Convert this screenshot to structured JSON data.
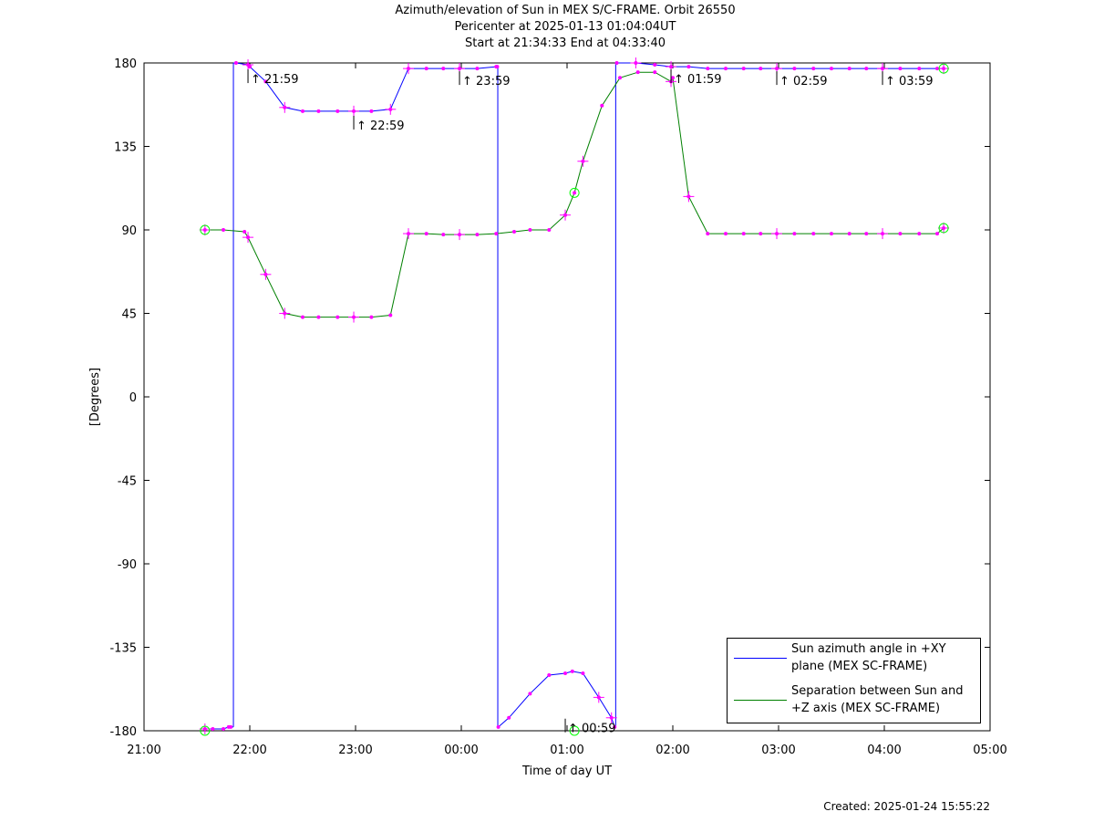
{
  "header": {
    "title_line1": "Azimuth/elevation of Sun in MEX S/C-FRAME.  Orbit 26550",
    "title_line2": "Pericenter at 2025-01-13 01:04:04UT",
    "title_line3": "Start at 21:34:33 End at 04:33:40"
  },
  "footer": {
    "created": "Created: 2025-01-24 15:55:22"
  },
  "legend": {
    "series_azimuth": "Sun azimuth angle in +XY\nplane (MEX SC-FRAME)",
    "series_separation": "Separation between Sun and\n+Z axis (MEX SC-FRAME)"
  },
  "colors": {
    "azimuth": "#0000ff",
    "separation": "#008000",
    "markers": "#ff00ff",
    "endpoint_circles": "#00ff00",
    "axes": "#000000"
  },
  "chart_data": {
    "type": "line",
    "xlabel": "Time of day UT",
    "ylabel": "[Degrees]",
    "xlim_hours": [
      21,
      29
    ],
    "ylim": [
      -180,
      180
    ],
    "x_ticks": [
      {
        "h": 21,
        "label": "21:00"
      },
      {
        "h": 22,
        "label": "22:00"
      },
      {
        "h": 23,
        "label": "23:00"
      },
      {
        "h": 24,
        "label": "00:00"
      },
      {
        "h": 25,
        "label": "01:00"
      },
      {
        "h": 26,
        "label": "02:00"
      },
      {
        "h": 27,
        "label": "03:00"
      },
      {
        "h": 28,
        "label": "04:00"
      },
      {
        "h": 29,
        "label": "05:00"
      }
    ],
    "y_ticks": [
      180,
      135,
      90,
      45,
      0,
      -45,
      -90,
      -135,
      -180
    ],
    "grid": false,
    "legend_position": "bottom-right",
    "series": [
      {
        "name": "Sun azimuth angle in +XY plane (MEX SC-FRAME)",
        "key": "azimuth",
        "points": [
          [
            21.576,
            -179
          ],
          [
            21.65,
            -179
          ],
          [
            21.75,
            -179
          ],
          [
            21.8,
            -178
          ],
          [
            21.82,
            -178
          ],
          [
            21.87,
            180
          ],
          [
            21.983,
            179
          ],
          [
            22.0,
            178
          ],
          [
            22.15,
            170
          ],
          [
            22.33,
            156
          ],
          [
            22.5,
            154
          ],
          [
            22.65,
            154
          ],
          [
            22.83,
            154
          ],
          [
            22.983,
            154
          ],
          [
            23.15,
            154
          ],
          [
            23.33,
            155
          ],
          [
            23.5,
            177
          ],
          [
            23.67,
            177
          ],
          [
            23.83,
            177
          ],
          [
            23.983,
            177
          ],
          [
            24.15,
            177
          ],
          [
            24.33,
            178
          ],
          [
            24.34,
            178
          ],
          [
            24.35,
            -178
          ],
          [
            24.45,
            -173
          ],
          [
            24.65,
            -160
          ],
          [
            24.83,
            -150
          ],
          [
            24.983,
            -149
          ],
          [
            25.05,
            -148
          ],
          [
            25.15,
            -149
          ],
          [
            25.3,
            -162
          ],
          [
            25.42,
            -173
          ],
          [
            25.45,
            -178
          ],
          [
            25.47,
            180
          ],
          [
            25.65,
            180
          ],
          [
            25.83,
            179
          ],
          [
            25.983,
            178
          ],
          [
            26.15,
            178
          ],
          [
            26.33,
            177
          ],
          [
            26.5,
            177
          ],
          [
            26.67,
            177
          ],
          [
            26.83,
            177
          ],
          [
            26.983,
            177
          ],
          [
            27.15,
            177
          ],
          [
            27.33,
            177
          ],
          [
            27.5,
            177
          ],
          [
            27.67,
            177
          ],
          [
            27.83,
            177
          ],
          [
            27.983,
            177
          ],
          [
            28.15,
            177
          ],
          [
            28.33,
            177
          ],
          [
            28.5,
            177
          ],
          [
            28.561,
            177
          ]
        ],
        "markers": [
          [
            21.576,
            -179
          ],
          [
            21.983,
            179
          ],
          [
            22.33,
            156
          ],
          [
            22.983,
            154
          ],
          [
            23.33,
            155
          ],
          [
            23.5,
            177
          ],
          [
            23.983,
            177
          ],
          [
            25.3,
            -162
          ],
          [
            25.42,
            -173
          ],
          [
            25.65,
            180
          ],
          [
            25.983,
            178
          ],
          [
            26.983,
            177
          ],
          [
            27.983,
            177
          ],
          [
            28.561,
            177
          ]
        ]
      },
      {
        "name": "Separation between Sun and +Z axis (MEX SC-FRAME)",
        "key": "separation",
        "points": [
          [
            21.576,
            90
          ],
          [
            21.75,
            90
          ],
          [
            21.95,
            89
          ],
          [
            21.983,
            86
          ],
          [
            22.15,
            66
          ],
          [
            22.33,
            45
          ],
          [
            22.5,
            43
          ],
          [
            22.65,
            43
          ],
          [
            22.83,
            43
          ],
          [
            22.983,
            43
          ],
          [
            23.15,
            43
          ],
          [
            23.33,
            44
          ],
          [
            23.5,
            88
          ],
          [
            23.67,
            88
          ],
          [
            23.83,
            87.5
          ],
          [
            23.983,
            87.5
          ],
          [
            24.15,
            87.5
          ],
          [
            24.33,
            88
          ],
          [
            24.5,
            89
          ],
          [
            24.65,
            90
          ],
          [
            24.83,
            90
          ],
          [
            24.983,
            98
          ],
          [
            25.07,
            110
          ],
          [
            25.15,
            127
          ],
          [
            25.33,
            157
          ],
          [
            25.5,
            172
          ],
          [
            25.67,
            175
          ],
          [
            25.83,
            175
          ],
          [
            25.983,
            170
          ],
          [
            26.0,
            172
          ],
          [
            26.15,
            108
          ],
          [
            26.33,
            88
          ],
          [
            26.5,
            88
          ],
          [
            26.67,
            88
          ],
          [
            26.83,
            88
          ],
          [
            26.983,
            88
          ],
          [
            27.15,
            88
          ],
          [
            27.33,
            88
          ],
          [
            27.5,
            88
          ],
          [
            27.67,
            88
          ],
          [
            27.83,
            88
          ],
          [
            27.983,
            88
          ],
          [
            28.15,
            88
          ],
          [
            28.33,
            88
          ],
          [
            28.5,
            88
          ],
          [
            28.561,
            91
          ]
        ],
        "markers": [
          [
            21.576,
            90
          ],
          [
            21.983,
            86
          ],
          [
            22.15,
            66
          ],
          [
            22.33,
            45
          ],
          [
            22.983,
            43
          ],
          [
            23.5,
            88
          ],
          [
            23.983,
            87.5
          ],
          [
            24.983,
            98
          ],
          [
            25.15,
            127
          ],
          [
            25.983,
            170
          ],
          [
            26.15,
            108
          ],
          [
            26.983,
            88
          ],
          [
            27.983,
            88
          ],
          [
            28.561,
            91
          ]
        ]
      }
    ],
    "endpoint_circles": [
      [
        21.576,
        -180
      ],
      [
        21.576,
        90
      ],
      [
        25.07,
        110
      ],
      [
        25.07,
        -180
      ],
      [
        28.561,
        177
      ],
      [
        28.561,
        91
      ]
    ],
    "annotations": [
      {
        "h": 21.983,
        "deg": 178,
        "label": "21:59"
      },
      {
        "h": 22.983,
        "deg": 153,
        "label": "22:59"
      },
      {
        "h": 23.983,
        "deg": 177,
        "label": "23:59"
      },
      {
        "h": 24.983,
        "deg": -172,
        "label": "00:59"
      },
      {
        "h": 25.983,
        "deg": 178,
        "label": "01:59"
      },
      {
        "h": 26.983,
        "deg": 177,
        "label": "02:59"
      },
      {
        "h": 27.983,
        "deg": 177,
        "label": "03:59"
      }
    ]
  }
}
